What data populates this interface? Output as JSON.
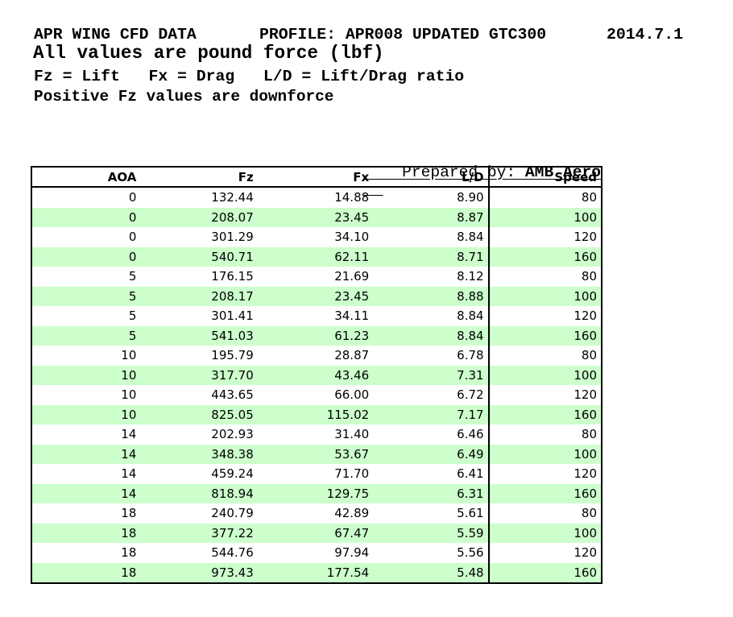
{
  "header": {
    "line1_left": "APR WING CFD DATA",
    "line1_middle": "PROFILE: APR008 UPDATED GTC300",
    "line1_right": "2014.7.1",
    "line2": "All values are pound force (lbf)",
    "line3": "Fz = Lift   Fx = Drag   L/D = Lift/Drag ratio",
    "line4": "Positive Fz values are downforce"
  },
  "prepared_by": {
    "label": "Prepared by: ",
    "value": "AMB Aero"
  },
  "table": {
    "columns": [
      "AOA",
      "Fz",
      "Fx",
      "L/D",
      "Speed"
    ],
    "rows": [
      [
        "0",
        "132.44",
        "14.88",
        "8.90",
        "80"
      ],
      [
        "0",
        "208.07",
        "23.45",
        "8.87",
        "100"
      ],
      [
        "0",
        "301.29",
        "34.10",
        "8.84",
        "120"
      ],
      [
        "0",
        "540.71",
        "62.11",
        "8.71",
        "160"
      ],
      [
        "5",
        "176.15",
        "21.69",
        "8.12",
        "80"
      ],
      [
        "5",
        "208.17",
        "23.45",
        "8.88",
        "100"
      ],
      [
        "5",
        "301.41",
        "34.11",
        "8.84",
        "120"
      ],
      [
        "5",
        "541.03",
        "61.23",
        "8.84",
        "160"
      ],
      [
        "10",
        "195.79",
        "28.87",
        "6.78",
        "80"
      ],
      [
        "10",
        "317.70",
        "43.46",
        "7.31",
        "100"
      ],
      [
        "10",
        "443.65",
        "66.00",
        "6.72",
        "120"
      ],
      [
        "10",
        "825.05",
        "115.02",
        "7.17",
        "160"
      ],
      [
        "14",
        "202.93",
        "31.40",
        "6.46",
        "80"
      ],
      [
        "14",
        "348.38",
        "53.67",
        "6.49",
        "100"
      ],
      [
        "14",
        "459.24",
        "71.70",
        "6.41",
        "120"
      ],
      [
        "14",
        "818.94",
        "129.75",
        "6.31",
        "160"
      ],
      [
        "18",
        "240.79",
        "42.89",
        "5.61",
        "80"
      ],
      [
        "18",
        "377.22",
        "67.47",
        "5.59",
        "100"
      ],
      [
        "18",
        "544.76",
        "97.94",
        "5.56",
        "120"
      ],
      [
        "18",
        "973.43",
        "177.54",
        "5.48",
        "160"
      ]
    ]
  },
  "colors": {
    "row_alt": "#ccffcc",
    "border": "#000000",
    "text": "#000000"
  }
}
